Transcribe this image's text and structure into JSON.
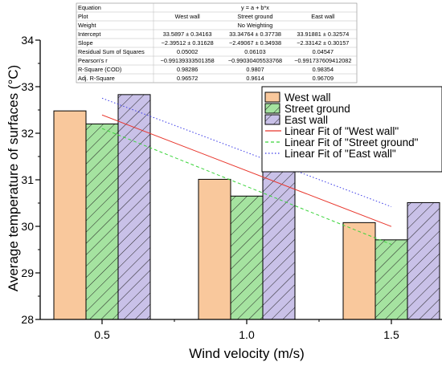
{
  "chart_data": {
    "type": "bar",
    "xlabel": "Wind velocity (m/s)",
    "ylabel": "Average temperature of surfaces (°C)",
    "categories": [
      "0.5",
      "1.0",
      "1.5"
    ],
    "ylim": [
      28,
      34
    ],
    "yticks": [
      "28",
      "29",
      "30",
      "31",
      "32",
      "33",
      "34"
    ],
    "series": [
      {
        "name": "West wall",
        "values": [
          32.48,
          31.01,
          30.08
        ],
        "color": "#f9c89c",
        "pattern": "solid"
      },
      {
        "name": "Street ground",
        "values": [
          32.2,
          30.65,
          29.71
        ],
        "color": "#a5e3a0",
        "pattern": "hatch"
      },
      {
        "name": "East wall",
        "values": [
          32.83,
          31.41,
          30.51
        ],
        "color": "#c9c1e8",
        "pattern": "hatch"
      }
    ],
    "fits": [
      {
        "name": "Linear Fit of \"West wall\"",
        "intercept": 33.5897,
        "slope": -2.39512,
        "color": "#e8352b",
        "dash": "solid"
      },
      {
        "name": "Linear Fit of \"Street ground\"",
        "intercept": 33.34764,
        "slope": -2.49067,
        "color": "#3bd43b",
        "dash": "dashed"
      },
      {
        "name": "Linear Fit of \"East wall\"",
        "intercept": 33.91881,
        "slope": -2.33142,
        "color": "#3b3be8",
        "dash": "dotted"
      }
    ],
    "legend_position": "right"
  },
  "fit_table": {
    "rows": [
      {
        "label": "Equation",
        "span": "y = a + b*x"
      },
      {
        "label": "Plot",
        "cells": [
          "West wall",
          "Street ground",
          "East wall"
        ]
      },
      {
        "label": "Weight",
        "span": "No Weighting"
      },
      {
        "label": "Intercept",
        "cells": [
          "33.5897 ± 0.34163",
          "33.34764 ± 0.37738",
          "33.91881 ± 0.32574"
        ]
      },
      {
        "label": "Slope",
        "cells": [
          "−2.39512 ± 0.31628",
          "−2.49067 ± 0.34938",
          "−2.33142 ± 0.30157"
        ]
      },
      {
        "label": "Residual Sum of Squares",
        "cells": [
          "0.05002",
          "0.06103",
          "0.04547"
        ]
      },
      {
        "label": "Pearson's r",
        "cells": [
          "−0.99139333501358",
          "−0.99030405533768",
          "−0.99173760941208​2"
        ]
      },
      {
        "label": "R-Square (COD)",
        "cells": [
          "0.98286",
          "0.9807",
          "0.98354"
        ]
      },
      {
        "label": "Adj. R-Square",
        "cells": [
          "0.96572",
          "0.9614",
          "0.96709"
        ]
      }
    ]
  }
}
